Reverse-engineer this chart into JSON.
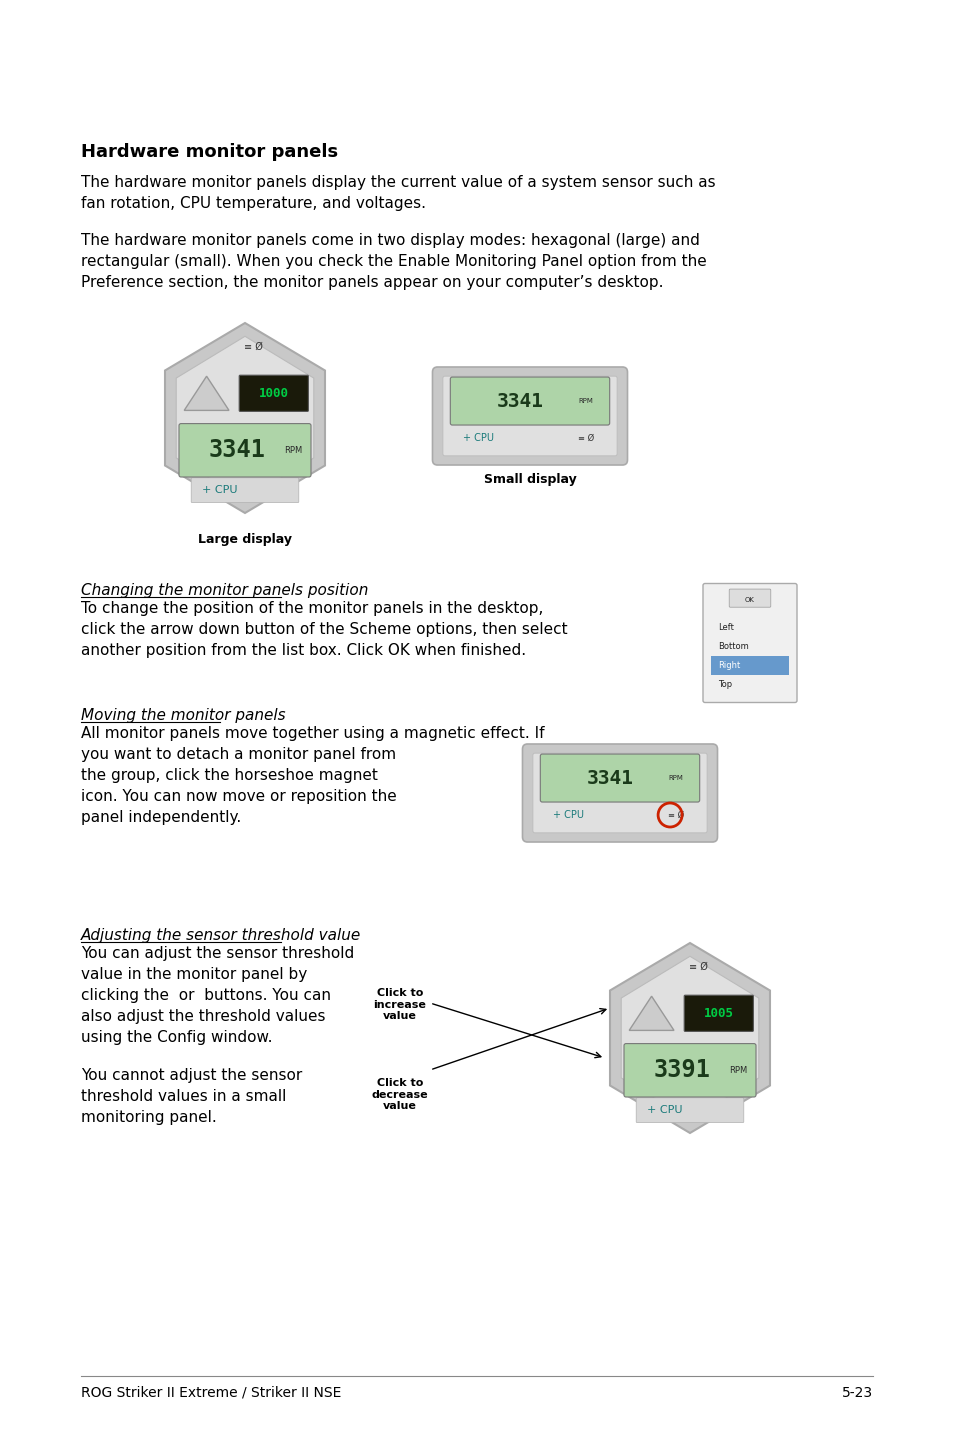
{
  "bg_color": "#ffffff",
  "footer_left": "ROG Striker II Extreme / Striker II NSE",
  "footer_right": "5-23",
  "title": "Hardware monitor panels",
  "large_display_label": "Large display",
  "small_display_label": "Small display",
  "section1_title": "Changing the monitor panels position",
  "section1_text": "To change the position of the monitor panels in the desktop,\nclick the arrow down button of the Scheme options, then select\nanother position from the list box. Click OK when finished.",
  "section2_title": "Moving the monitor panels",
  "section2_text": "All monitor panels move together using a magnetic effect. If\nyou want to detach a monitor panel from\nthe group, click the horseshoe magnet\nicon. You can now move or reposition the\npanel independently.",
  "section3_title": "Adjusting the sensor threshold value",
  "section3_text1": "You can adjust the sensor threshold\nvalue in the monitor panel by\nclicking the  or  buttons. You can\nalso adjust the threshold values\nusing the Config window.",
  "section3_text2": "You cannot adjust the sensor\nthreshold values in a small\nmonitoring panel.",
  "click_increase_label": "Click to\nincrease\nvalue",
  "click_decrease_label": "Click to\ndecrease\nvalue",
  "title_fontsize": 13,
  "body_fontsize": 11,
  "footer_fontsize": 10
}
